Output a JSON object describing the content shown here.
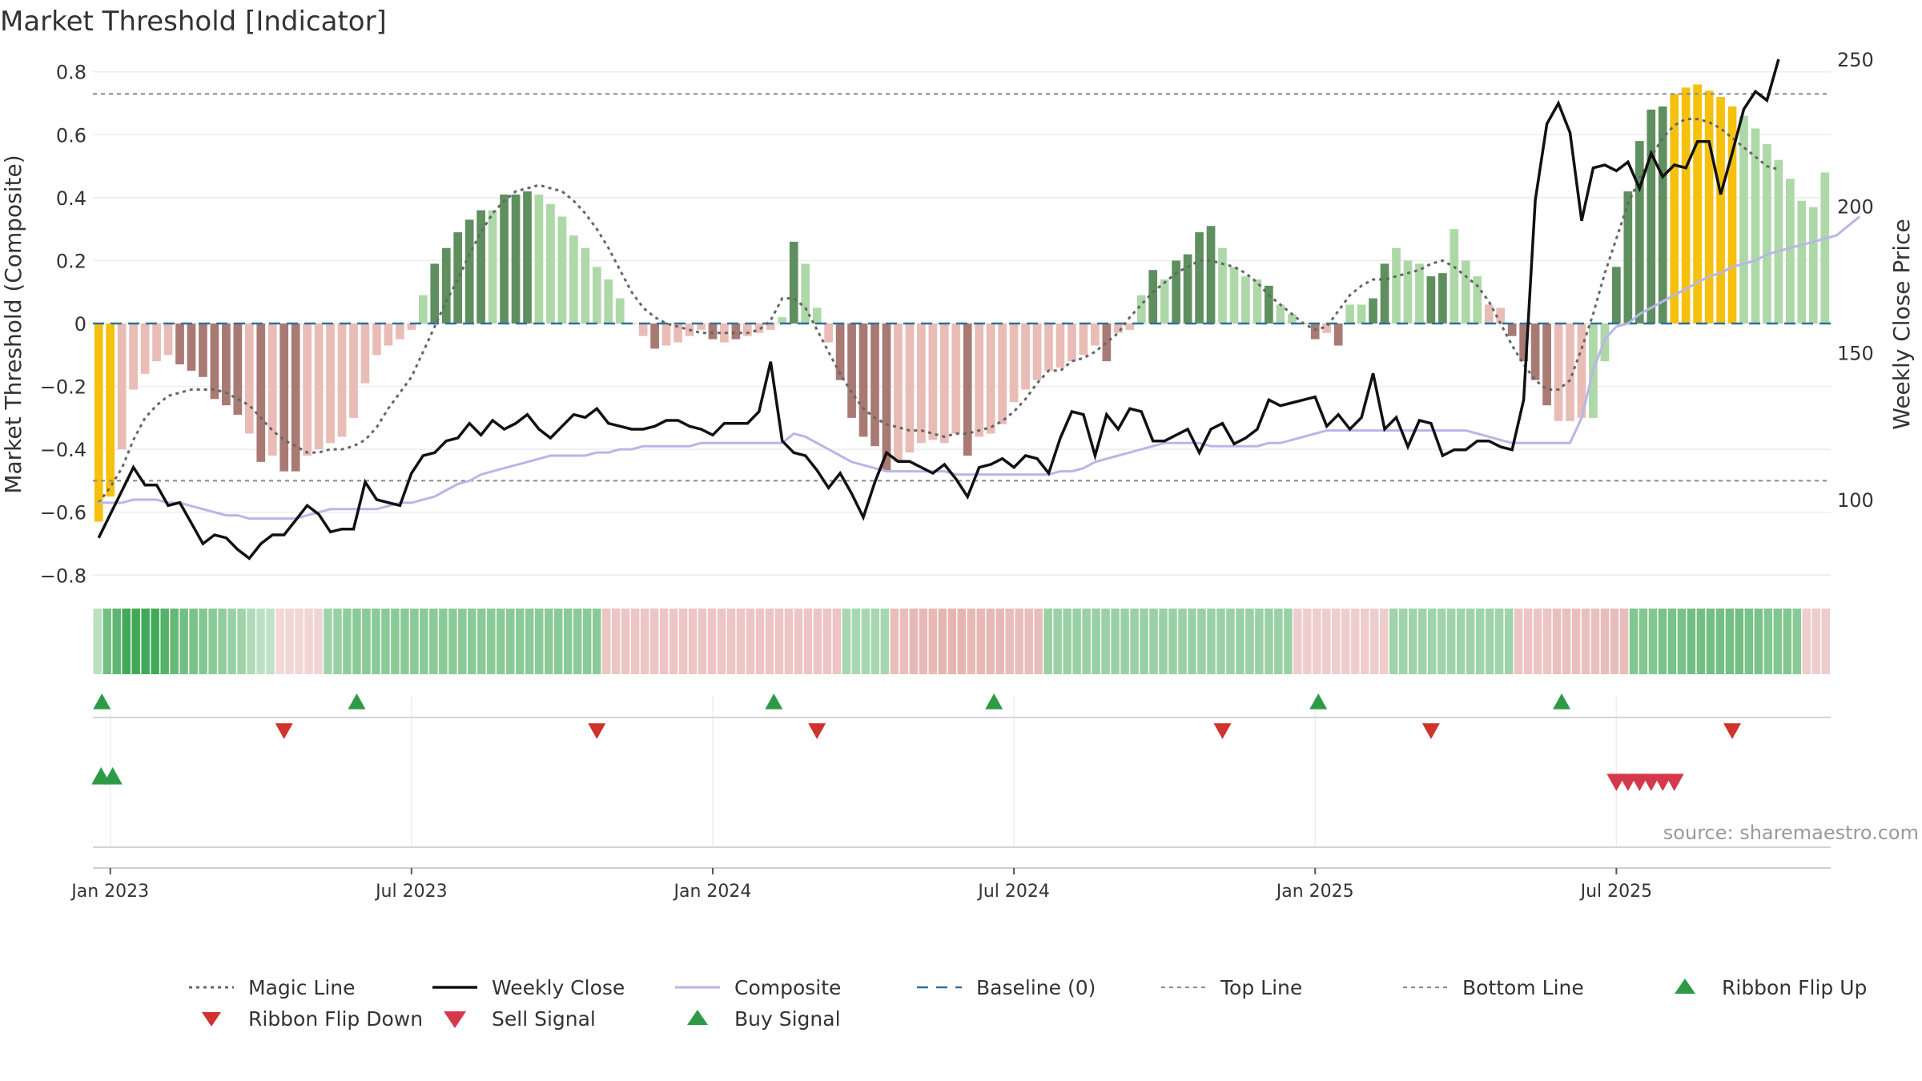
{
  "title": "Market Threshold [Indicator]",
  "source": "source: sharemaestro.com",
  "colors": {
    "bar_strong_up": "#5f8f5f",
    "bar_weak_up": "#aed8a8",
    "bar_strong_down": "#a97a74",
    "bar_weak_down": "#e9bcb6",
    "bar_extreme": "#f5c10e",
    "close_line": "#111111",
    "composite_line": "#b9b6e6",
    "magic_line": "#666666",
    "baseline": "#2f6f9f",
    "threshold_line": "#888888",
    "buy_signal": "#2e9a48",
    "sell_signal": "#d6384b",
    "flip_up": "#2e9a48",
    "flip_down": "#d0322d",
    "ribbon_green_dark": "#34a853",
    "ribbon_red": "#e2a8a4"
  },
  "chart_data": {
    "type": "bar",
    "title": "Market Threshold [Indicator]",
    "ylabel": "Market Threshold (Composite)",
    "y2label": "Weekly Close Price",
    "ylim": [
      -0.84,
      0.84
    ],
    "y2lim": [
      70,
      250
    ],
    "yticks": [
      {
        "v": 0.8,
        "label": "0.8"
      },
      {
        "v": 0.6,
        "label": "0.6"
      },
      {
        "v": 0.4,
        "label": "0.4"
      },
      {
        "v": 0.2,
        "label": "0.2"
      },
      {
        "v": 0.0,
        "label": "0"
      },
      {
        "v": -0.2,
        "label": "−0.2"
      },
      {
        "v": -0.4,
        "label": "−0.4"
      },
      {
        "v": -0.6,
        "label": "−0.6"
      },
      {
        "v": -0.8,
        "label": "−0.8"
      }
    ],
    "y2ticks": [
      {
        "v": 250,
        "label": "250"
      },
      {
        "v": 200,
        "label": "200"
      },
      {
        "v": 150,
        "label": "150"
      },
      {
        "v": 100,
        "label": "100"
      }
    ],
    "xticks": [
      {
        "w": 1,
        "label": "Jan 2023"
      },
      {
        "w": 27,
        "label": "Jul 2023"
      },
      {
        "w": 53,
        "label": "Jan 2024"
      },
      {
        "w": 79,
        "label": "Jul 2024"
      },
      {
        "w": 105,
        "label": "Jan 2025"
      },
      {
        "w": 131,
        "label": "Jul 2025"
      }
    ],
    "top_line": 0.73,
    "bottom_line": -0.5,
    "baseline": 0,
    "composite_values": [
      -0.63,
      -0.55,
      -0.4,
      -0.21,
      -0.16,
      -0.12,
      -0.1,
      -0.13,
      -0.15,
      -0.17,
      -0.24,
      -0.26,
      -0.29,
      -0.35,
      -0.44,
      -0.42,
      -0.47,
      -0.47,
      -0.42,
      -0.4,
      -0.38,
      -0.36,
      -0.3,
      -0.19,
      -0.1,
      -0.07,
      -0.05,
      -0.02,
      0.09,
      0.19,
      0.24,
      0.29,
      0.33,
      0.36,
      0.36,
      0.41,
      0.41,
      0.42,
      0.41,
      0.38,
      0.34,
      0.28,
      0.24,
      0.18,
      0.14,
      0.08,
      0.0,
      -0.04,
      -0.08,
      -0.07,
      -0.06,
      -0.04,
      -0.02,
      -0.05,
      -0.06,
      -0.05,
      -0.04,
      -0.03,
      -0.02,
      0.02,
      0.26,
      0.19,
      0.05,
      -0.06,
      -0.18,
      -0.3,
      -0.36,
      -0.39,
      -0.47,
      -0.44,
      -0.41,
      -0.38,
      -0.37,
      -0.38,
      -0.35,
      -0.42,
      -0.36,
      -0.35,
      -0.32,
      -0.25,
      -0.21,
      -0.18,
      -0.15,
      -0.14,
      -0.12,
      -0.1,
      -0.07,
      -0.12,
      -0.03,
      -0.02,
      0.09,
      0.17,
      0.14,
      0.2,
      0.22,
      0.29,
      0.31,
      0.24,
      0.18,
      0.15,
      0.14,
      0.12,
      0.06,
      0.03,
      0.0,
      -0.05,
      -0.03,
      -0.07,
      0.06,
      0.06,
      0.08,
      0.19,
      0.24,
      0.2,
      0.19,
      0.15,
      0.16,
      0.3,
      0.2,
      0.15,
      0.06,
      0.05,
      -0.04,
      -0.12,
      -0.18,
      -0.26,
      -0.31,
      -0.31,
      -0.3,
      -0.3,
      -0.12,
      0.18,
      0.42,
      0.58,
      0.68,
      0.69,
      0.73,
      0.75,
      0.76,
      0.74,
      0.72,
      0.69,
      0.66,
      0.62,
      0.57,
      0.52,
      0.46,
      0.39,
      0.37,
      0.48
    ],
    "bar_classes": [
      "x",
      "x",
      "wd",
      "wd",
      "wd",
      "wd",
      "wd",
      "sd",
      "sd",
      "sd",
      "sd",
      "sd",
      "sd",
      "wd",
      "sd",
      "wd",
      "sd",
      "sd",
      "wd",
      "wd",
      "wd",
      "wd",
      "wd",
      "wd",
      "wd",
      "wd",
      "wd",
      "wd",
      "wu",
      "su",
      "su",
      "su",
      "su",
      "su",
      "wu",
      "su",
      "su",
      "su",
      "wu",
      "wu",
      "wu",
      "wu",
      "wu",
      "wu",
      "wu",
      "wu",
      "wd",
      "wd",
      "sd",
      "wd",
      "wd",
      "wd",
      "wd",
      "sd",
      "wd",
      "sd",
      "wd",
      "wd",
      "wd",
      "wu",
      "su",
      "wu",
      "wu",
      "wd",
      "sd",
      "sd",
      "sd",
      "sd",
      "sd",
      "wd",
      "wd",
      "wd",
      "wd",
      "wd",
      "wd",
      "sd",
      "wd",
      "wd",
      "wd",
      "wd",
      "wd",
      "wd",
      "wd",
      "wd",
      "wd",
      "wd",
      "wd",
      "sd",
      "wd",
      "wd",
      "wu",
      "su",
      "wu",
      "su",
      "su",
      "su",
      "su",
      "wu",
      "wu",
      "wu",
      "wu",
      "su",
      "wu",
      "wu",
      "wu",
      "sd",
      "wd",
      "sd",
      "wu",
      "wu",
      "su",
      "su",
      "wu",
      "wu",
      "wu",
      "su",
      "su",
      "wu",
      "wu",
      "wu",
      "wd",
      "wd",
      "sd",
      "sd",
      "sd",
      "sd",
      "wd",
      "wd",
      "wd",
      "wu",
      "wu",
      "su",
      "su",
      "su",
      "su",
      "su",
      "x",
      "x",
      "x",
      "x",
      "x",
      "x",
      "wu",
      "wu",
      "wu",
      "wu",
      "wu",
      "wu",
      "wu",
      "wu",
      "wu",
      "su"
    ],
    "series": [
      {
        "name": "Weekly Close",
        "axis": "right",
        "values": [
          87,
          95,
          103,
          111,
          105,
          105,
          98,
          99,
          92,
          85,
          88,
          87,
          83,
          80,
          85,
          88,
          88,
          93,
          98,
          95,
          89,
          90,
          90,
          106,
          100,
          99,
          98,
          109,
          115,
          116,
          120,
          121,
          126,
          122,
          127,
          124,
          126,
          129,
          124,
          121,
          125,
          129,
          128,
          131,
          126,
          125,
          124,
          124,
          125,
          127,
          127,
          125,
          124,
          122,
          126,
          126,
          126,
          130,
          147,
          120,
          116,
          115,
          110,
          104,
          109,
          102,
          94,
          106,
          116,
          113,
          113,
          111,
          109,
          112,
          107,
          101,
          111,
          112,
          114,
          111,
          115,
          114,
          109,
          121,
          130,
          129,
          115,
          129,
          124,
          131,
          130,
          120,
          120,
          122,
          124,
          116,
          124,
          126,
          119,
          121,
          124,
          134,
          132,
          133,
          134,
          135,
          125,
          129,
          124,
          128,
          143,
          124,
          128,
          118,
          127,
          126,
          115,
          117,
          117,
          120,
          120,
          118,
          117,
          134,
          202,
          228,
          235,
          225,
          195,
          213,
          214,
          212,
          215,
          206,
          218,
          210,
          214,
          213,
          222,
          222,
          204,
          218,
          233,
          239,
          236,
          250
        ]
      },
      {
        "name": "Composite",
        "axis": "left",
        "values": [
          -0.57,
          -0.57,
          -0.57,
          -0.56,
          -0.56,
          -0.56,
          -0.57,
          -0.57,
          -0.58,
          -0.59,
          -0.6,
          -0.61,
          -0.61,
          -0.62,
          -0.62,
          -0.62,
          -0.62,
          -0.62,
          -0.61,
          -0.6,
          -0.59,
          -0.59,
          -0.59,
          -0.59,
          -0.59,
          -0.58,
          -0.57,
          -0.57,
          -0.56,
          -0.55,
          -0.53,
          -0.51,
          -0.5,
          -0.48,
          -0.47,
          -0.46,
          -0.45,
          -0.44,
          -0.43,
          -0.42,
          -0.42,
          -0.42,
          -0.42,
          -0.41,
          -0.41,
          -0.4,
          -0.4,
          -0.39,
          -0.39,
          -0.39,
          -0.39,
          -0.39,
          -0.38,
          -0.38,
          -0.38,
          -0.38,
          -0.38,
          -0.38,
          -0.38,
          -0.38,
          -0.35,
          -0.36,
          -0.38,
          -0.4,
          -0.42,
          -0.44,
          -0.45,
          -0.46,
          -0.47,
          -0.47,
          -0.47,
          -0.47,
          -0.47,
          -0.47,
          -0.48,
          -0.48,
          -0.48,
          -0.48,
          -0.48,
          -0.48,
          -0.48,
          -0.48,
          -0.48,
          -0.47,
          -0.47,
          -0.46,
          -0.44,
          -0.43,
          -0.42,
          -0.41,
          -0.4,
          -0.39,
          -0.38,
          -0.38,
          -0.38,
          -0.38,
          -0.39,
          -0.39,
          -0.39,
          -0.39,
          -0.39,
          -0.38,
          -0.38,
          -0.37,
          -0.36,
          -0.35,
          -0.34,
          -0.34,
          -0.34,
          -0.34,
          -0.34,
          -0.34,
          -0.34,
          -0.34,
          -0.34,
          -0.34,
          -0.34,
          -0.34,
          -0.34,
          -0.35,
          -0.36,
          -0.37,
          -0.38,
          -0.38,
          -0.38,
          -0.38,
          -0.38,
          -0.38,
          -0.3,
          -0.15,
          -0.05,
          -0.01,
          0.0,
          0.03,
          0.05,
          0.07,
          0.09,
          0.11,
          0.13,
          0.15,
          0.16,
          0.18,
          0.19,
          0.2,
          0.22,
          0.23,
          0.24,
          0.25,
          0.26,
          0.27,
          0.28,
          0.31,
          0.34
        ]
      },
      {
        "name": "Magic Line",
        "axis": "left",
        "values": [
          -0.57,
          -0.52,
          -0.46,
          -0.37,
          -0.3,
          -0.26,
          -0.23,
          -0.22,
          -0.21,
          -0.21,
          -0.21,
          -0.22,
          -0.24,
          -0.26,
          -0.3,
          -0.34,
          -0.37,
          -0.39,
          -0.41,
          -0.41,
          -0.4,
          -0.4,
          -0.39,
          -0.37,
          -0.33,
          -0.27,
          -0.22,
          -0.17,
          -0.09,
          -0.01,
          0.07,
          0.14,
          0.22,
          0.29,
          0.35,
          0.39,
          0.42,
          0.43,
          0.44,
          0.43,
          0.42,
          0.39,
          0.35,
          0.3,
          0.24,
          0.17,
          0.1,
          0.05,
          0.02,
          0.0,
          -0.01,
          -0.02,
          -0.03,
          -0.03,
          -0.03,
          -0.03,
          -0.03,
          -0.02,
          0.01,
          0.08,
          0.08,
          0.05,
          -0.02,
          -0.09,
          -0.16,
          -0.22,
          -0.27,
          -0.3,
          -0.32,
          -0.33,
          -0.34,
          -0.34,
          -0.35,
          -0.36,
          -0.35,
          -0.35,
          -0.34,
          -0.33,
          -0.31,
          -0.28,
          -0.24,
          -0.19,
          -0.15,
          -0.15,
          -0.12,
          -0.11,
          -0.09,
          -0.06,
          -0.03,
          0.02,
          0.06,
          0.1,
          0.13,
          0.16,
          0.18,
          0.2,
          0.2,
          0.19,
          0.18,
          0.16,
          0.13,
          0.09,
          0.06,
          0.03,
          0.0,
          -0.02,
          -0.01,
          0.04,
          0.09,
          0.12,
          0.14,
          0.14,
          0.15,
          0.16,
          0.17,
          0.19,
          0.2,
          0.18,
          0.15,
          0.12,
          0.07,
          0.0,
          -0.07,
          -0.13,
          -0.18,
          -0.21,
          -0.21,
          -0.18,
          -0.08,
          0.03,
          0.16,
          0.27,
          0.38,
          0.46,
          0.53,
          0.59,
          0.63,
          0.65,
          0.65,
          0.64,
          0.62,
          0.59,
          0.56,
          0.53,
          0.5,
          0.49
        ]
      }
    ],
    "ribbon": [
      0.12,
      0.6,
      0.75,
      0.95,
      0.95,
      0.95,
      0.95,
      0.8,
      0.7,
      0.6,
      0.55,
      0.5,
      0.45,
      0.4,
      0.35,
      0.3,
      0.2,
      0.1,
      0.08,
      -0.08,
      -0.1,
      -0.1,
      -0.12,
      -0.12,
      0.3,
      0.35,
      0.4,
      0.45,
      0.45,
      0.45,
      0.45,
      0.45,
      0.45,
      0.45,
      0.45,
      0.45,
      0.45,
      0.45,
      0.45,
      0.45,
      0.45,
      0.45,
      0.45,
      0.45,
      0.45,
      0.45,
      0.45,
      0.45,
      0.45,
      0.45,
      0.45,
      0.45,
      0.45,
      -0.3,
      -0.3,
      -0.3,
      -0.3,
      -0.3,
      -0.3,
      -0.3,
      -0.3,
      -0.3,
      -0.3,
      -0.3,
      -0.3,
      -0.3,
      -0.3,
      -0.3,
      -0.3,
      -0.3,
      -0.3,
      -0.3,
      -0.3,
      -0.3,
      -0.3,
      -0.3,
      -0.3,
      -0.3,
      0.25,
      0.25,
      0.25,
      0.25,
      0.25,
      -0.4,
      -0.4,
      -0.45,
      -0.45,
      -0.45,
      -0.5,
      -0.5,
      -0.5,
      -0.45,
      -0.45,
      -0.45,
      -0.45,
      -0.4,
      -0.4,
      -0.4,
      -0.4,
      0.35,
      0.35,
      0.35,
      0.35,
      0.35,
      0.35,
      0.35,
      0.35,
      0.35,
      0.35,
      0.35,
      0.35,
      0.35,
      0.35,
      0.35,
      0.35,
      0.35,
      0.35,
      0.35,
      0.35,
      0.35,
      0.35,
      0.35,
      0.35,
      0.35,
      0.35,
      -0.2,
      -0.2,
      -0.2,
      -0.2,
      -0.2,
      -0.2,
      -0.2,
      -0.2,
      -0.2,
      -0.2,
      0.3,
      0.3,
      0.3,
      0.3,
      0.3,
      0.3,
      0.3,
      0.3,
      0.3,
      0.3,
      0.3,
      0.3,
      0.3,
      -0.3,
      -0.3,
      -0.3,
      -0.3,
      -0.35,
      -0.35,
      -0.35,
      -0.35,
      -0.35,
      -0.4,
      -0.4,
      -0.4,
      0.5,
      0.5,
      0.5,
      0.55,
      0.55,
      0.55,
      0.6,
      0.6,
      0.6,
      0.6,
      0.6,
      0.6,
      0.55,
      0.55,
      0.5,
      0.5,
      0.5,
      0.45,
      -0.2,
      -0.2,
      -0.2
    ],
    "flip_up_weeks": [
      0,
      22,
      58,
      77,
      105,
      126
    ],
    "flip_down_weeks": [
      16,
      43,
      62,
      97,
      115,
      141
    ],
    "buy_signal_weeks": [
      0,
      1
    ],
    "sell_signal_weeks": [
      131,
      132,
      133,
      134,
      135,
      136
    ],
    "legend": [
      {
        "label": "Magic Line",
        "style": "dotted"
      },
      {
        "label": "Weekly Close",
        "style": "solid-black"
      },
      {
        "label": "Composite",
        "style": "solid-lavender"
      },
      {
        "label": "Baseline (0)",
        "style": "dashed-blue"
      },
      {
        "label": "Top Line",
        "style": "dotted-gray"
      },
      {
        "label": "Bottom Line",
        "style": "dotted-gray"
      },
      {
        "label": "Ribbon Flip Up",
        "style": "tri-up-green"
      },
      {
        "label": "Ribbon Flip Down",
        "style": "tri-down-red"
      },
      {
        "label": "Sell Signal",
        "style": "tri-down-pink"
      },
      {
        "label": "Buy Signal",
        "style": "tri-up-green"
      }
    ]
  }
}
